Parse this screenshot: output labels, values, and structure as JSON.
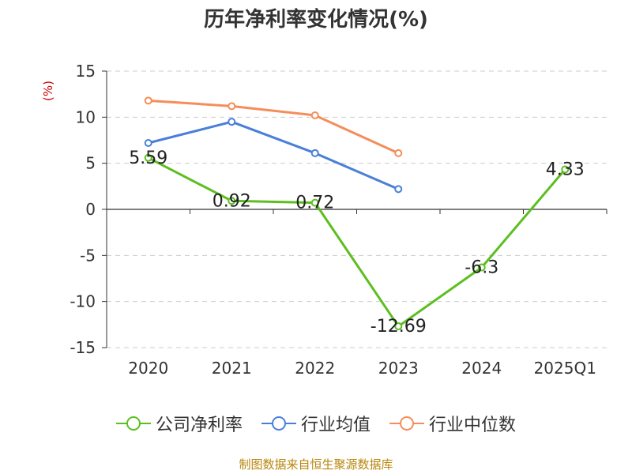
{
  "title": "历年净利率变化情况(%)",
  "source": "制图数据来自恒生聚源数据库",
  "colors": {
    "公司净利率": "#5cbf1f",
    "行业均值": "#4a7fd9",
    "行业中位数": "#f58d5a"
  },
  "chart_data": {
    "type": "line",
    "title": "历年净利率变化情况(%)",
    "ylabel": "(%)",
    "xlabel": "",
    "categories": [
      "2020",
      "2021",
      "2022",
      "2023",
      "2024",
      "2025Q1"
    ],
    "ylim": [
      -15,
      15
    ],
    "yticks": [
      15,
      10,
      5,
      0,
      -5,
      -10,
      -15
    ],
    "grid": true,
    "legend_position": "bottom",
    "series": [
      {
        "name": "公司净利率",
        "values": [
          5.59,
          0.92,
          0.72,
          -12.69,
          -6.3,
          4.33
        ],
        "labels": [
          "5.59",
          "0.92",
          "0.72",
          "-12.69",
          "-6.3",
          "4.33"
        ]
      },
      {
        "name": "行业均值",
        "values": [
          7.2,
          9.5,
          6.1,
          2.2,
          null,
          null
        ]
      },
      {
        "name": "行业中位数",
        "values": [
          11.8,
          11.2,
          10.2,
          6.1,
          null,
          null
        ]
      }
    ]
  }
}
